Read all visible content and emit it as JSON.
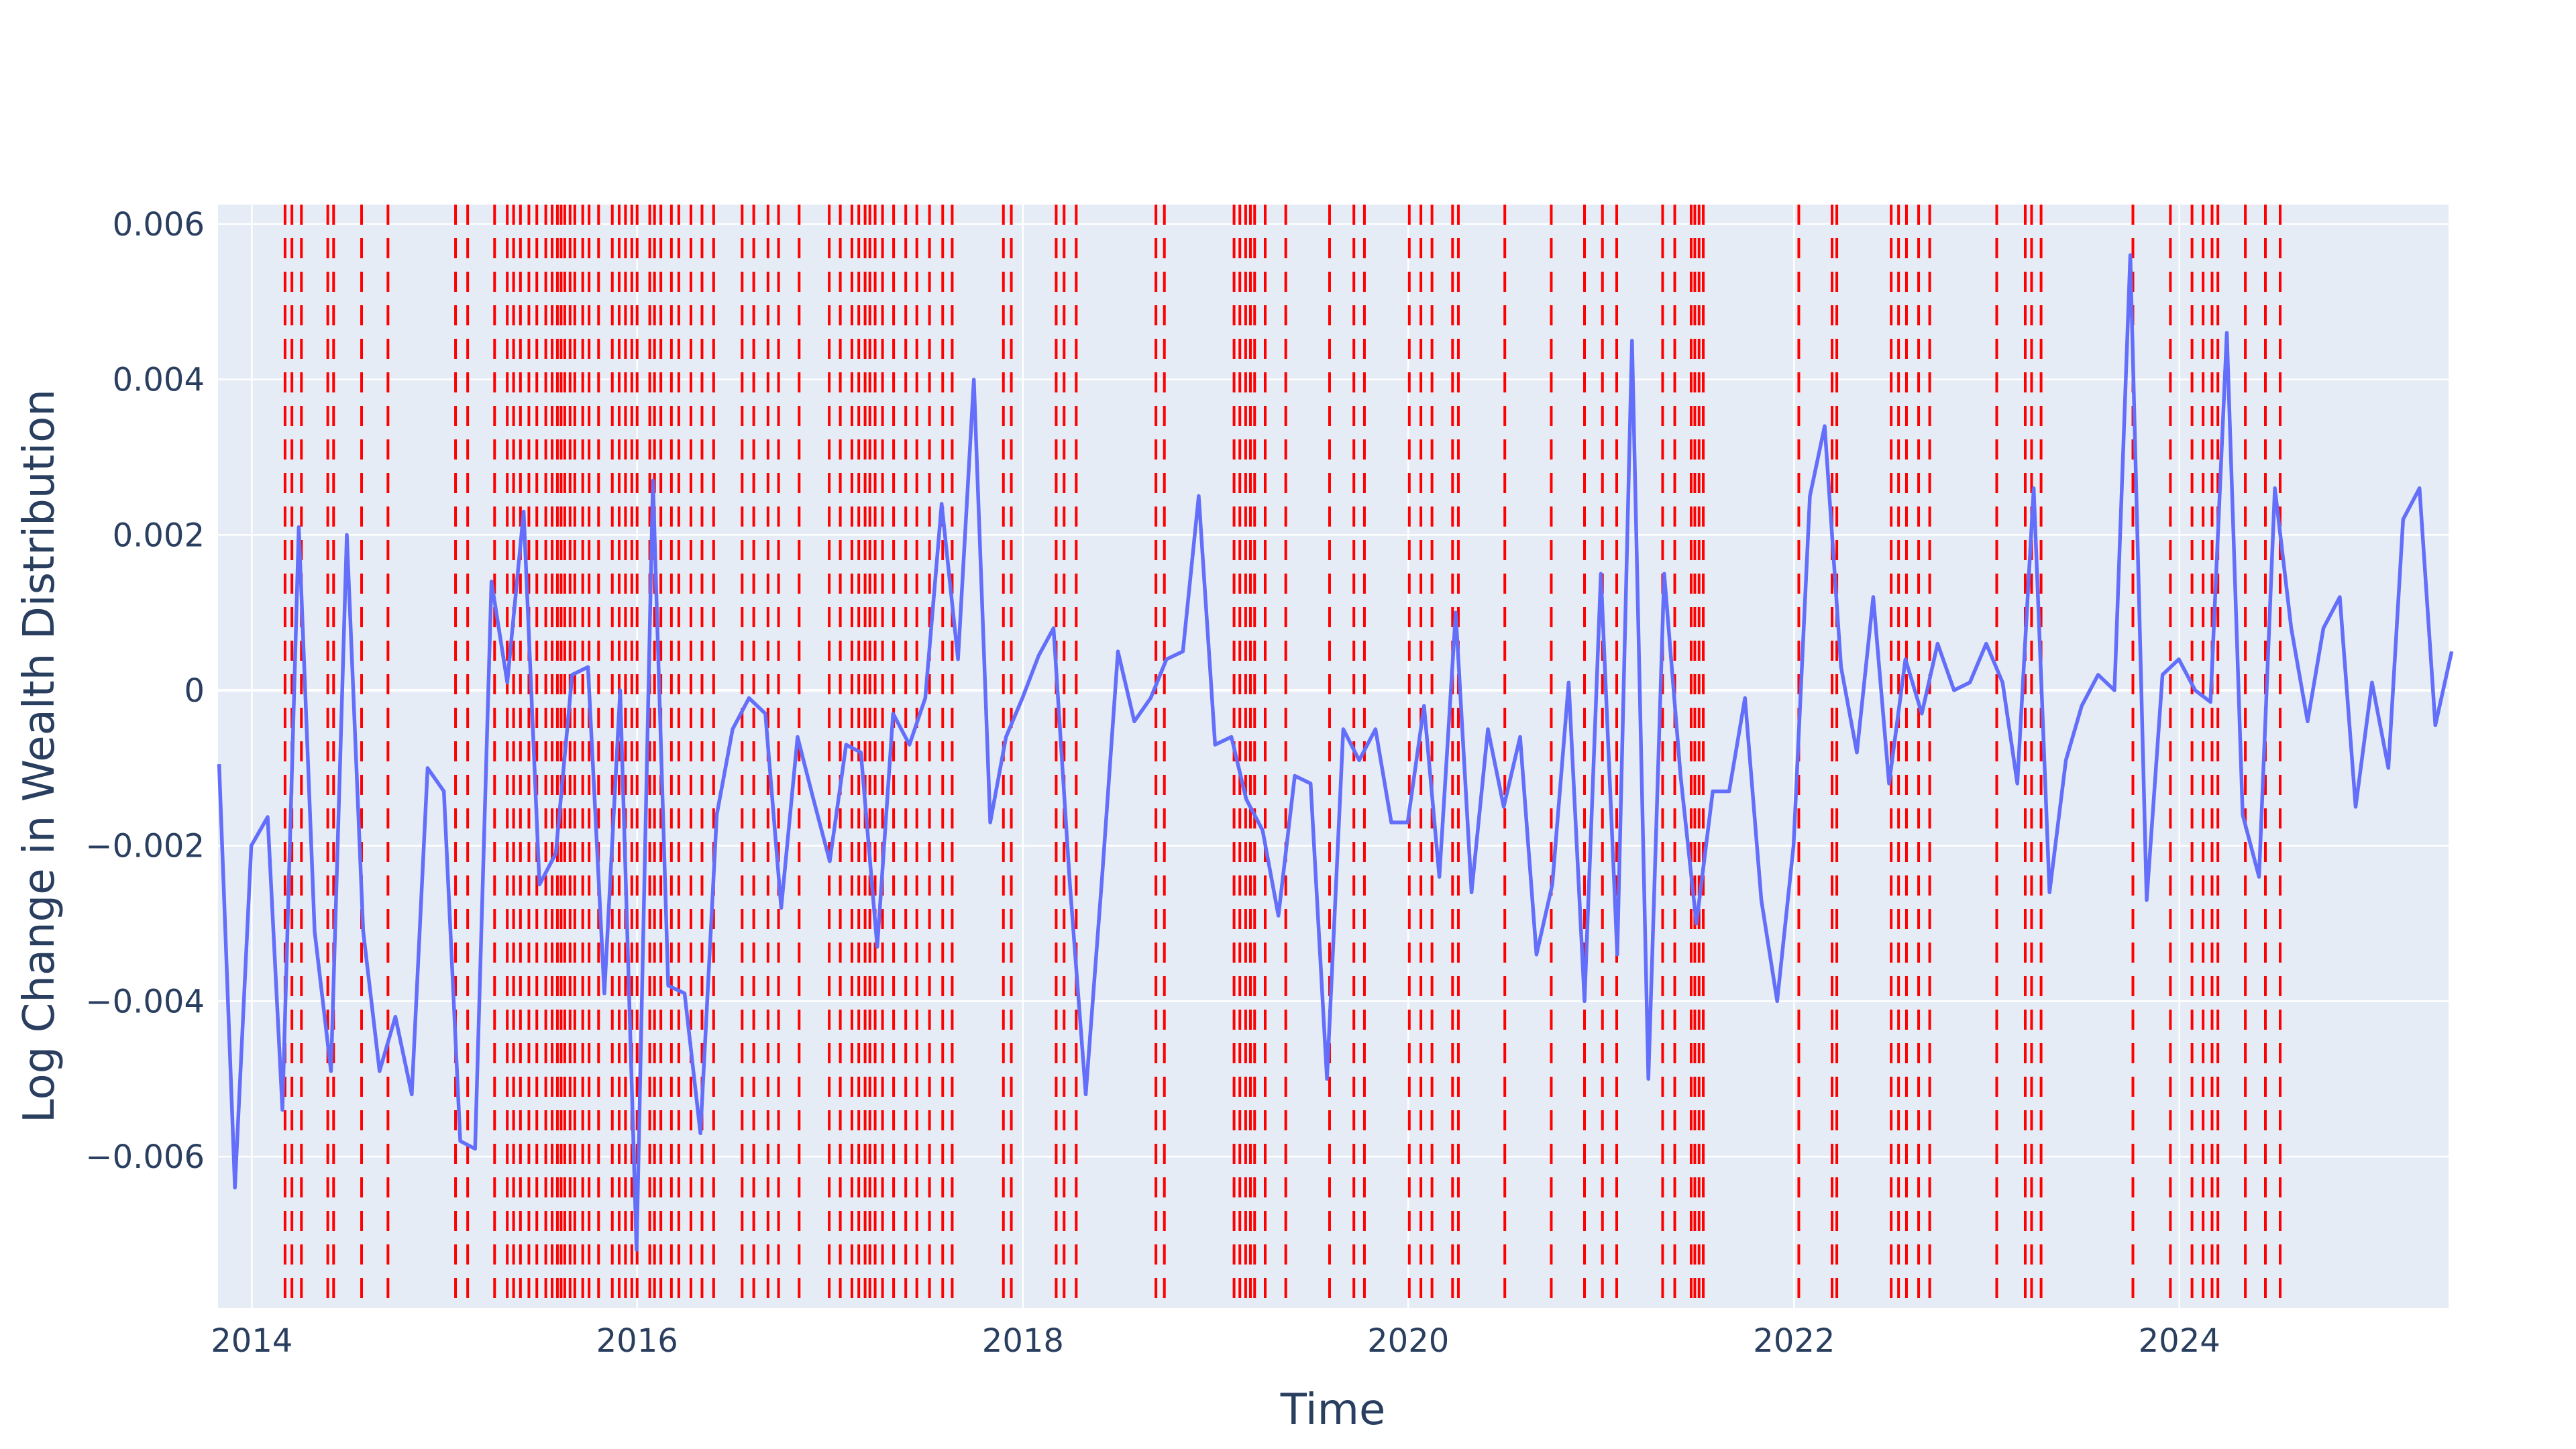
{
  "chart_data": {
    "type": "line",
    "title": "",
    "xlabel": "Time",
    "ylabel": "Log Change in Wealth Distribution",
    "xlim": [
      "2013-10-29",
      "2025-05-25"
    ],
    "ylim": [
      -0.00795,
      0.00625
    ],
    "x_ticks": [
      "2014",
      "2016",
      "2018",
      "2020",
      "2022",
      "2024"
    ],
    "y_ticks": [
      {
        "value": 0.006,
        "label": "0.006"
      },
      {
        "value": 0.004,
        "label": "0.004"
      },
      {
        "value": 0.002,
        "label": "0.002"
      },
      {
        "value": 0,
        "label": "0"
      },
      {
        "value": -0.002,
        "label": "−0.002"
      },
      {
        "value": -0.004,
        "label": "−0.004"
      },
      {
        "value": -0.006,
        "label": "−0.006"
      }
    ],
    "grid": true,
    "legend": "none",
    "colors": {
      "line": "#636efa",
      "events": "#ff0000",
      "plot_background": "#e5ecf6",
      "grid": "#ffffff",
      "text": "#2a3f5f"
    },
    "series": [
      {
        "x": [
          "2013-10-31",
          "2013-11-30",
          "2013-12-31",
          "2014-01-31",
          "2014-02-28",
          "2014-03-31",
          "2014-04-30",
          "2014-05-31",
          "2014-06-30",
          "2014-07-31",
          "2014-08-31",
          "2014-09-30",
          "2014-10-31",
          "2014-11-30",
          "2014-12-31",
          "2015-01-31",
          "2015-02-28",
          "2015-03-31",
          "2015-04-30",
          "2015-05-31",
          "2015-06-30",
          "2015-07-31",
          "2015-08-31",
          "2015-09-30",
          "2015-10-31",
          "2015-11-30",
          "2015-12-31",
          "2016-01-31",
          "2016-02-29",
          "2016-03-31",
          "2016-04-30",
          "2016-05-31",
          "2016-06-30",
          "2016-07-31",
          "2016-08-31",
          "2016-09-30",
          "2016-10-31",
          "2016-11-30",
          "2016-12-31",
          "2017-01-31",
          "2017-02-28",
          "2017-03-31",
          "2017-04-30",
          "2017-05-31",
          "2017-06-30",
          "2017-07-31",
          "2017-08-31",
          "2017-09-30",
          "2017-10-31",
          "2017-11-30",
          "2017-12-31",
          "2018-01-31",
          "2018-02-28",
          "2018-03-31",
          "2018-04-30",
          "2018-05-31",
          "2018-06-30",
          "2018-07-31",
          "2018-08-31",
          "2018-09-30",
          "2018-10-31",
          "2018-11-30",
          "2018-12-31",
          "2019-01-31",
          "2019-02-28",
          "2019-03-31",
          "2019-04-30",
          "2019-05-31",
          "2019-06-30",
          "2019-07-31",
          "2019-08-31",
          "2019-09-30",
          "2019-10-31",
          "2019-11-30",
          "2019-12-31",
          "2020-01-31",
          "2020-02-29",
          "2020-03-31",
          "2020-04-30",
          "2020-05-31",
          "2020-06-30",
          "2020-07-31",
          "2020-08-31",
          "2020-09-30",
          "2020-10-31",
          "2020-11-30",
          "2020-12-31",
          "2021-01-31",
          "2021-02-28",
          "2021-03-31",
          "2021-04-30",
          "2021-05-31",
          "2021-06-30",
          "2021-07-31",
          "2021-08-31",
          "2021-09-30",
          "2021-10-31",
          "2021-11-30",
          "2021-12-31",
          "2022-01-31",
          "2022-02-28",
          "2022-03-31",
          "2022-04-30",
          "2022-05-31",
          "2022-06-30",
          "2022-07-31",
          "2022-08-31",
          "2022-09-30",
          "2022-10-31",
          "2022-11-30",
          "2022-12-31",
          "2023-01-31",
          "2023-02-28",
          "2023-03-31",
          "2023-04-30",
          "2023-05-31",
          "2023-06-30",
          "2023-07-31",
          "2023-08-31",
          "2023-09-30",
          "2023-10-31",
          "2023-11-30",
          "2023-12-31",
          "2024-01-31",
          "2024-02-29",
          "2024-03-31",
          "2024-04-30",
          "2024-05-31",
          "2024-06-30",
          "2024-07-31",
          "2024-08-31",
          "2024-09-30",
          "2024-10-31",
          "2024-11-30",
          "2024-12-31",
          "2025-01-31",
          "2025-02-28",
          "2025-03-31",
          "2025-04-30",
          "2025-05-31"
        ],
        "y": [
          -0.00095,
          -0.0064,
          -0.002,
          -0.00163,
          -0.0054,
          0.0021,
          -0.0031,
          -0.0049,
          0.002,
          -0.0031,
          -0.0049,
          -0.0042,
          -0.0052,
          -0.001,
          -0.0013,
          -0.0058,
          -0.0059,
          0.0014,
          0.0001,
          0.0023,
          -0.0025,
          -0.0021,
          0.0002,
          0.0003,
          -0.0039,
          0,
          -0.0072,
          0.0027,
          -0.0038,
          -0.0039,
          -0.0057,
          -0.0016,
          -0.0005,
          -0.0001,
          -0.0003,
          -0.0028,
          -0.0006,
          -0.0014,
          -0.0022,
          -0.0007,
          -0.0008,
          -0.0033,
          -0.0003,
          -0.0007,
          -0.0001,
          0.0024,
          0.0004,
          0.004,
          -0.0017,
          -0.0006,
          -0.0001,
          0.00045,
          0.0008,
          -0.0025,
          -0.0052,
          -0.0024,
          0.0005,
          -0.0004,
          -0.0001,
          0.0004,
          0.0005,
          0.0025,
          -0.0007,
          -0.0006,
          -0.0014,
          -0.0018,
          -0.0029,
          -0.0011,
          -0.0012,
          -0.005,
          -0.0005,
          -0.0009,
          -0.0005,
          -0.0017,
          -0.0017,
          -0.0002,
          -0.0024,
          0.001,
          -0.0026,
          -0.0005,
          -0.0015,
          -0.0006,
          -0.0034,
          -0.0025,
          0.0001,
          -0.004,
          0.0015,
          -0.0034,
          0.0045,
          -0.005,
          0.0015,
          -0.0011,
          -0.003,
          -0.0013,
          -0.0013,
          -0.0001,
          -0.0027,
          -0.004,
          -0.002,
          0.0025,
          0.0034,
          0.0003,
          -0.0008,
          0.0012,
          -0.0012,
          0.0004,
          -0.0003,
          0.0006,
          0,
          0.0001,
          0.0006,
          0.0001,
          -0.0012,
          0.0026,
          -0.0026,
          -0.0009,
          -0.0002,
          0.0002,
          0,
          0.0056,
          -0.0027,
          0.0002,
          0.0004,
          0,
          -0.00015,
          0.0046,
          -0.0016,
          -0.0024,
          0.0026,
          0.0008,
          -0.0004,
          0.0008,
          0.0012,
          -0.0015,
          0.0001,
          -0.001,
          0.0022,
          0.0026,
          -0.00045,
          0.0005
        ]
      }
    ],
    "event_lines": [
      "2014-03-05",
      "2014-03-18",
      "2014-04-05",
      "2014-05-25",
      "2014-06-05",
      "2014-07-28",
      "2014-09-16",
      "2015-01-22",
      "2015-02-14",
      "2015-04-06",
      "2015-04-30",
      "2015-05-12",
      "2015-05-25",
      "2015-06-10",
      "2015-06-25",
      "2015-07-12",
      "2015-07-24",
      "2015-08-03",
      "2015-08-10",
      "2015-08-17",
      "2015-08-27",
      "2015-09-05",
      "2015-09-20",
      "2015-10-02",
      "2015-10-20",
      "2015-11-15",
      "2015-11-28",
      "2015-12-10",
      "2015-12-22",
      "2016-01-01",
      "2016-01-25",
      "2016-02-03",
      "2016-02-15",
      "2016-03-06",
      "2016-03-20",
      "2016-04-12",
      "2016-05-03",
      "2016-05-25",
      "2016-07-18",
      "2016-08-09",
      "2016-09-05",
      "2016-09-25",
      "2016-11-03",
      "2016-12-30",
      "2017-01-20",
      "2017-02-11",
      "2017-02-24",
      "2017-03-08",
      "2017-03-17",
      "2017-03-27",
      "2017-04-10",
      "2017-05-01",
      "2017-05-24",
      "2017-06-14",
      "2017-07-08",
      "2017-08-02",
      "2017-08-20",
      "2017-11-25",
      "2017-12-10",
      "2018-03-05",
      "2018-03-20",
      "2018-04-12",
      "2018-09-10",
      "2018-09-26",
      "2019-02-05",
      "2019-02-16",
      "2019-02-27",
      "2019-03-08",
      "2019-03-16",
      "2019-04-05",
      "2019-05-14",
      "2019-08-05",
      "2019-09-20",
      "2019-10-10",
      "2020-01-03",
      "2020-01-25",
      "2020-02-15",
      "2020-03-25",
      "2020-04-05",
      "2020-07-02",
      "2020-09-28",
      "2020-11-30",
      "2021-01-03",
      "2021-01-30",
      "2021-04-27",
      "2021-05-20",
      "2021-06-20",
      "2021-06-27",
      "2021-07-05",
      "2021-07-13",
      "2022-01-10",
      "2022-03-14",
      "2022-03-23",
      "2022-07-04",
      "2022-07-18",
      "2022-08-02",
      "2022-08-25",
      "2022-09-15",
      "2023-01-20",
      "2023-03-15",
      "2023-03-27",
      "2023-04-14",
      "2023-10-05",
      "2023-12-15",
      "2024-01-25",
      "2024-02-15",
      "2024-03-03",
      "2024-03-14",
      "2024-05-05",
      "2024-06-12",
      "2024-07-10"
    ]
  }
}
